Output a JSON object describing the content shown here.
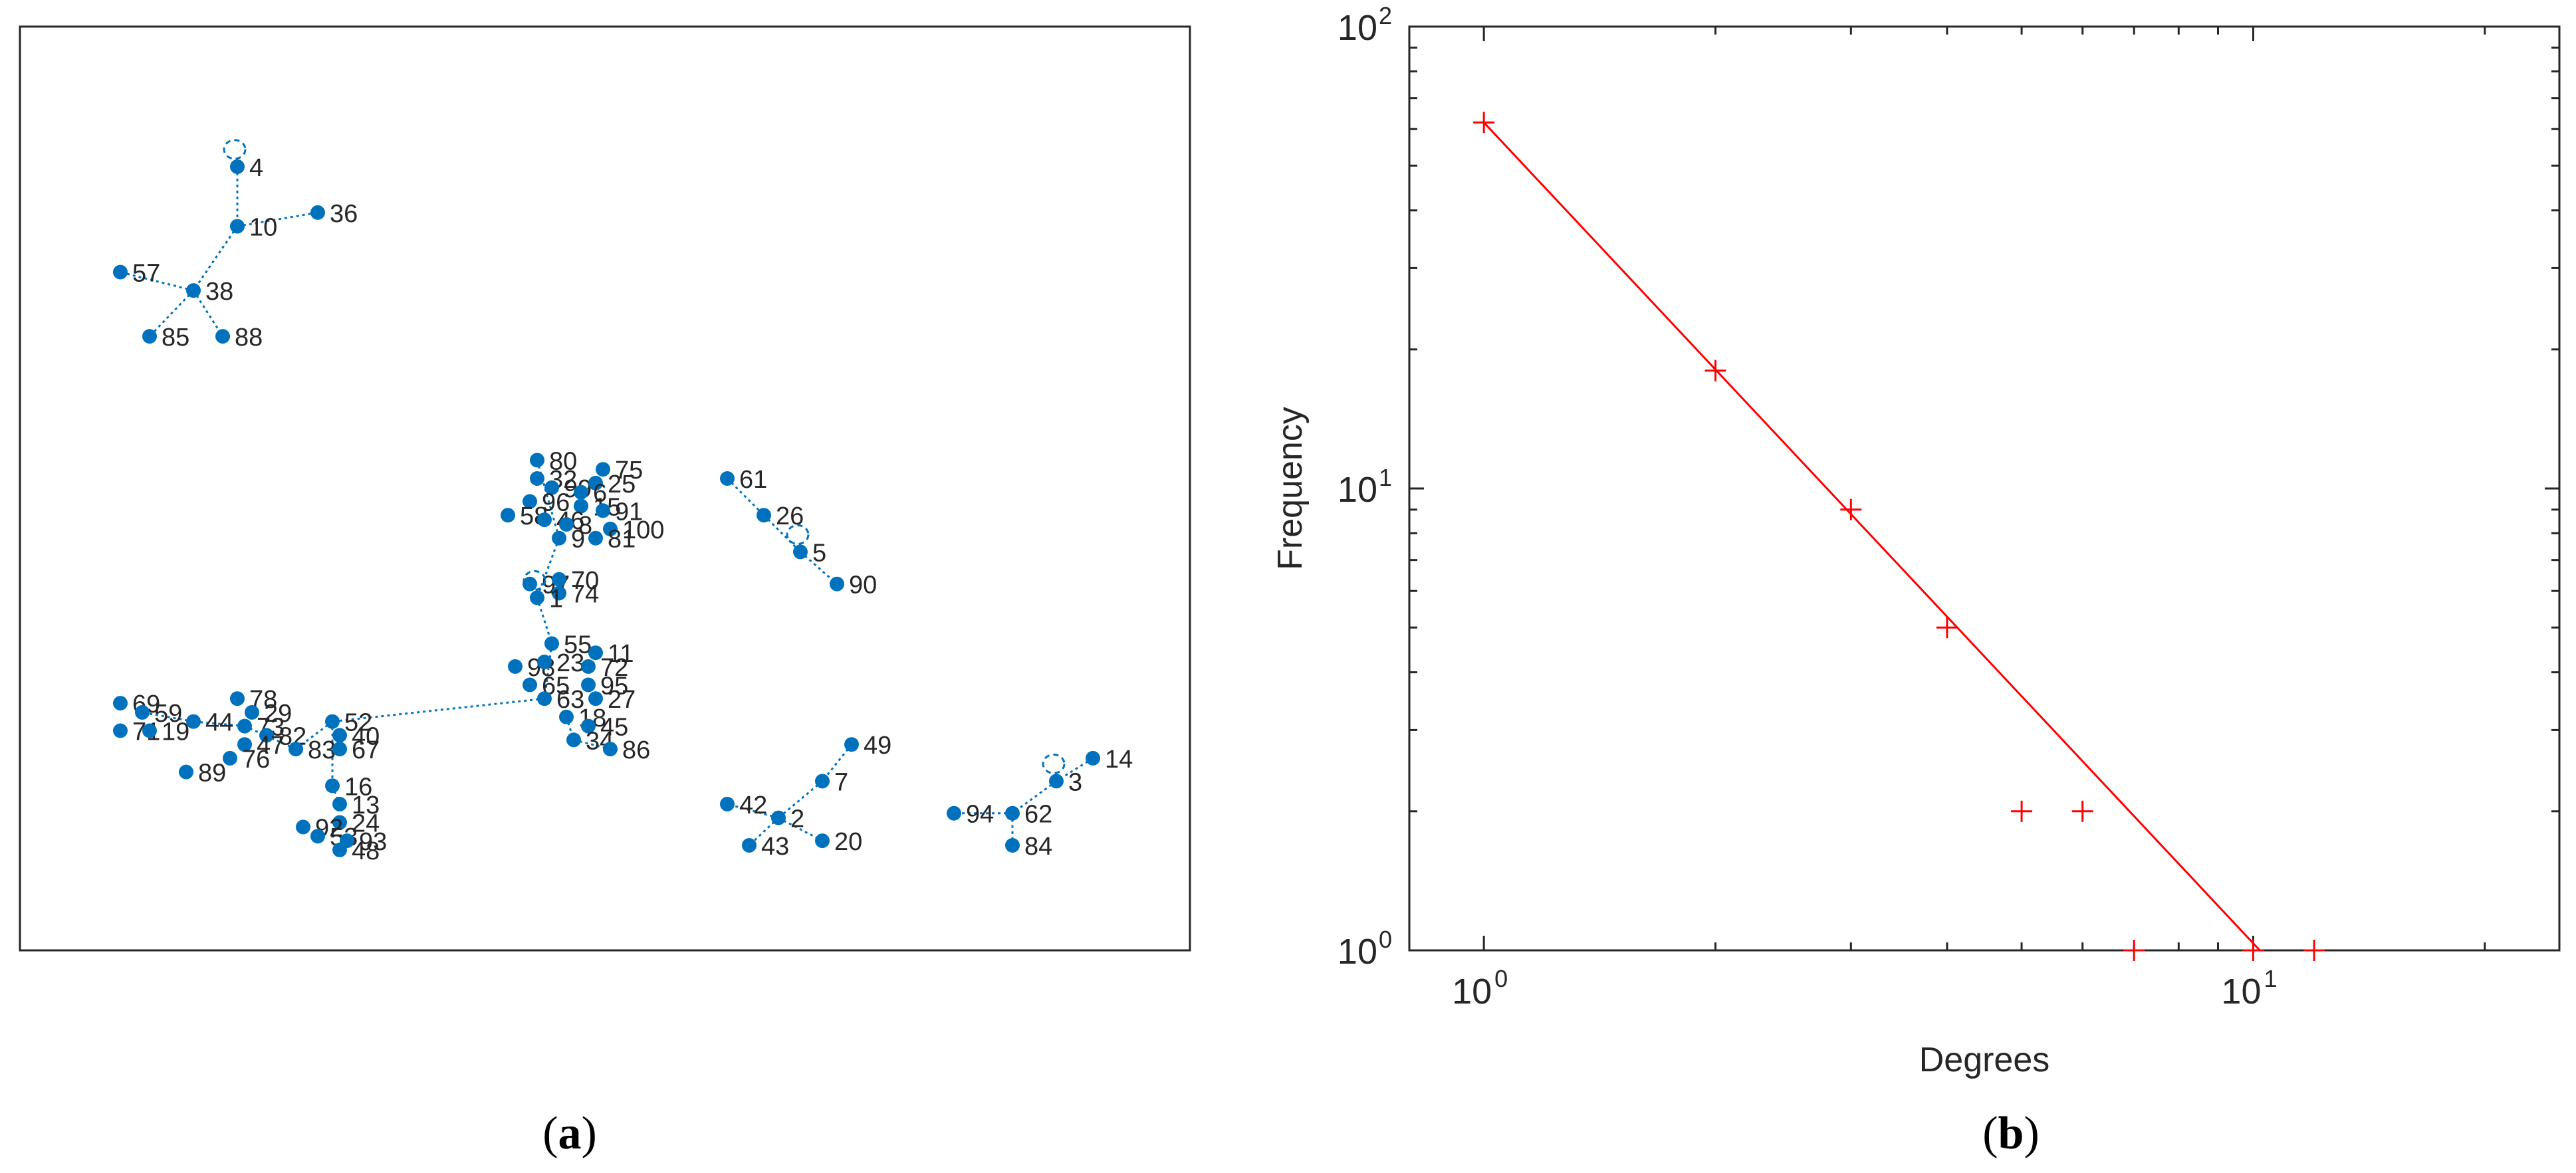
{
  "panel_a": {
    "caption_letter": "a",
    "caption_open": "(",
    "caption_close": ")",
    "node_color": "#0072BD",
    "clusters": [
      {
        "nodes": [
          {
            "id": "4",
            "x": 1.35,
            "y": 8.4,
            "self_loop": true
          },
          {
            "id": "10",
            "x": 1.35,
            "y": 7.75
          },
          {
            "id": "36",
            "x": 1.9,
            "y": 7.9
          },
          {
            "id": "38",
            "x": 1.05,
            "y": 7.05
          },
          {
            "id": "57",
            "x": 0.55,
            "y": 7.25
          },
          {
            "id": "85",
            "x": 0.75,
            "y": 6.55
          },
          {
            "id": "88",
            "x": 1.25,
            "y": 6.55
          }
        ],
        "edges": [
          [
            "4",
            "10"
          ],
          [
            "10",
            "36"
          ],
          [
            "10",
            "38"
          ],
          [
            "38",
            "57"
          ],
          [
            "38",
            "85"
          ],
          [
            "38",
            "88"
          ]
        ]
      },
      {
        "nodes": [
          {
            "id": "61",
            "x": 4.7,
            "y": 5.0
          },
          {
            "id": "26",
            "x": 4.95,
            "y": 4.6
          },
          {
            "id": "5",
            "x": 5.2,
            "y": 4.2,
            "self_loop": true
          },
          {
            "id": "90",
            "x": 5.45,
            "y": 3.85
          }
        ],
        "edges": [
          [
            "61",
            "26"
          ],
          [
            "26",
            "5"
          ],
          [
            "5",
            "90"
          ]
        ]
      },
      {
        "nodes": [
          {
            "id": "49",
            "x": 5.55,
            "y": 2.1
          },
          {
            "id": "7",
            "x": 5.35,
            "y": 1.7
          },
          {
            "id": "2",
            "x": 5.05,
            "y": 1.3
          },
          {
            "id": "42",
            "x": 4.7,
            "y": 1.45
          },
          {
            "id": "43",
            "x": 4.85,
            "y": 1.0
          },
          {
            "id": "20",
            "x": 5.35,
            "y": 1.05
          }
        ],
        "edges": [
          [
            "49",
            "7"
          ],
          [
            "7",
            "2"
          ],
          [
            "2",
            "42"
          ],
          [
            "2",
            "43"
          ],
          [
            "2",
            "20"
          ]
        ]
      },
      {
        "nodes": [
          {
            "id": "14",
            "x": 7.2,
            "y": 1.95
          },
          {
            "id": "3",
            "x": 6.95,
            "y": 1.7,
            "self_loop": true
          },
          {
            "id": "62",
            "x": 6.65,
            "y": 1.35
          },
          {
            "id": "94",
            "x": 6.25,
            "y": 1.35
          },
          {
            "id": "84",
            "x": 6.65,
            "y": 1.0
          }
        ],
        "edges": [
          [
            "14",
            "3"
          ],
          [
            "3",
            "62"
          ],
          [
            "62",
            "94"
          ],
          [
            "62",
            "84"
          ]
        ]
      },
      {
        "nodes": [
          {
            "id": "80",
            "x": 3.4,
            "y": 5.2
          },
          {
            "id": "75",
            "x": 3.85,
            "y": 5.1
          },
          {
            "id": "32",
            "x": 3.4,
            "y": 5.0
          },
          {
            "id": "99",
            "x": 3.5,
            "y": 4.9
          },
          {
            "id": "25",
            "x": 3.8,
            "y": 4.95
          },
          {
            "id": "6",
            "x": 3.7,
            "y": 4.85
          },
          {
            "id": "36b",
            "label": "96",
            "x": 3.35,
            "y": 4.75
          },
          {
            "id": "15",
            "x": 3.7,
            "y": 4.7
          },
          {
            "id": "91",
            "x": 3.85,
            "y": 4.65
          },
          {
            "id": "58",
            "x": 3.2,
            "y": 4.6
          },
          {
            "id": "46",
            "x": 3.45,
            "y": 4.55
          },
          {
            "id": "8",
            "x": 3.6,
            "y": 4.5
          },
          {
            "id": "100",
            "x": 3.9,
            "y": 4.45
          },
          {
            "id": "9",
            "x": 3.55,
            "y": 4.35
          },
          {
            "id": "81",
            "x": 3.8,
            "y": 4.35
          },
          {
            "id": "97",
            "x": 3.35,
            "y": 3.85
          },
          {
            "id": "70",
            "x": 3.55,
            "y": 3.9
          },
          {
            "id": "74",
            "x": 3.55,
            "y": 3.75
          },
          {
            "id": "1",
            "x": 3.4,
            "y": 3.7,
            "self_loop": true
          },
          {
            "id": "55",
            "x": 3.5,
            "y": 3.2
          },
          {
            "id": "11",
            "x": 3.8,
            "y": 3.1
          },
          {
            "id": "98",
            "x": 3.25,
            "y": 2.95
          },
          {
            "id": "23",
            "x": 3.45,
            "y": 3.0
          },
          {
            "id": "72",
            "x": 3.75,
            "y": 2.95
          },
          {
            "id": "65",
            "x": 3.35,
            "y": 2.75
          },
          {
            "id": "95",
            "x": 3.75,
            "y": 2.75
          },
          {
            "id": "63",
            "x": 3.45,
            "y": 2.6
          },
          {
            "id": "27",
            "x": 3.8,
            "y": 2.6
          },
          {
            "id": "18",
            "x": 3.6,
            "y": 2.4
          },
          {
            "id": "45",
            "x": 3.75,
            "y": 2.3
          },
          {
            "id": "34",
            "x": 3.65,
            "y": 2.15
          },
          {
            "id": "86",
            "x": 3.9,
            "y": 2.05
          },
          {
            "id": "69",
            "x": 0.55,
            "y": 2.55
          },
          {
            "id": "59",
            "x": 0.7,
            "y": 2.45
          },
          {
            "id": "71",
            "x": 0.55,
            "y": 2.25
          },
          {
            "id": "19",
            "x": 0.75,
            "y": 2.25
          },
          {
            "id": "44",
            "x": 1.05,
            "y": 2.35
          },
          {
            "id": "78",
            "x": 1.35,
            "y": 2.6
          },
          {
            "id": "29",
            "x": 1.45,
            "y": 2.45
          },
          {
            "id": "73",
            "x": 1.4,
            "y": 2.3
          },
          {
            "id": "82",
            "x": 1.55,
            "y": 2.2
          },
          {
            "id": "47",
            "x": 1.4,
            "y": 2.1
          },
          {
            "id": "76",
            "x": 1.3,
            "y": 1.95
          },
          {
            "id": "89",
            "x": 1.0,
            "y": 1.8
          },
          {
            "id": "83",
            "x": 1.75,
            "y": 2.05
          },
          {
            "id": "52",
            "x": 2.0,
            "y": 2.35
          },
          {
            "id": "40",
            "x": 2.05,
            "y": 2.2
          },
          {
            "id": "67",
            "x": 2.05,
            "y": 2.05
          },
          {
            "id": "16",
            "x": 2.0,
            "y": 1.65
          },
          {
            "id": "13",
            "x": 2.05,
            "y": 1.45
          },
          {
            "id": "24",
            "x": 2.05,
            "y": 1.25
          },
          {
            "id": "92",
            "x": 1.8,
            "y": 1.2
          },
          {
            "id": "53",
            "x": 1.9,
            "y": 1.1
          },
          {
            "id": "93",
            "x": 2.1,
            "y": 1.05
          },
          {
            "id": "48",
            "x": 2.05,
            "y": 0.95
          }
        ],
        "edges": [
          [
            "80",
            "9"
          ],
          [
            "9",
            "1"
          ],
          [
            "1",
            "55"
          ],
          [
            "55",
            "63"
          ],
          [
            "63",
            "52"
          ],
          [
            "52",
            "16"
          ],
          [
            "16",
            "13"
          ],
          [
            "52",
            "83"
          ],
          [
            "83",
            "73"
          ],
          [
            "73",
            "44"
          ],
          [
            "44",
            "59"
          ],
          [
            "18",
            "34"
          ],
          [
            "34",
            "86"
          ]
        ]
      }
    ]
  },
  "panel_b": {
    "caption_letter": "b",
    "caption_open": "(",
    "caption_close": ")",
    "color": "#FF0000"
  },
  "chart_data": {
    "type": "scatter",
    "title": "",
    "xlabel": "Degrees",
    "ylabel": "Frequency",
    "xscale": "log",
    "yscale": "log",
    "xlim": [
      0.8,
      25
    ],
    "ylim": [
      1,
      100
    ],
    "x_ticks": [
      {
        "base": "10",
        "exp": "0",
        "value": 1
      },
      {
        "base": "10",
        "exp": "1",
        "value": 10
      }
    ],
    "y_ticks": [
      {
        "base": "10",
        "exp": "0",
        "value": 1
      },
      {
        "base": "10",
        "exp": "1",
        "value": 10
      },
      {
        "base": "10",
        "exp": "2",
        "value": 100
      }
    ],
    "grid": false,
    "marker": "+",
    "points": [
      {
        "x": 1,
        "y": 62
      },
      {
        "x": 2,
        "y": 18
      },
      {
        "x": 3,
        "y": 9
      },
      {
        "x": 4,
        "y": 5
      },
      {
        "x": 5,
        "y": 2
      },
      {
        "x": 6,
        "y": 2
      },
      {
        "x": 7,
        "y": 1
      },
      {
        "x": 10,
        "y": 1
      },
      {
        "x": 12,
        "y": 1
      }
    ],
    "fit_line": [
      {
        "x": 1,
        "y": 62
      },
      {
        "x": 10.2,
        "y": 1
      }
    ]
  }
}
